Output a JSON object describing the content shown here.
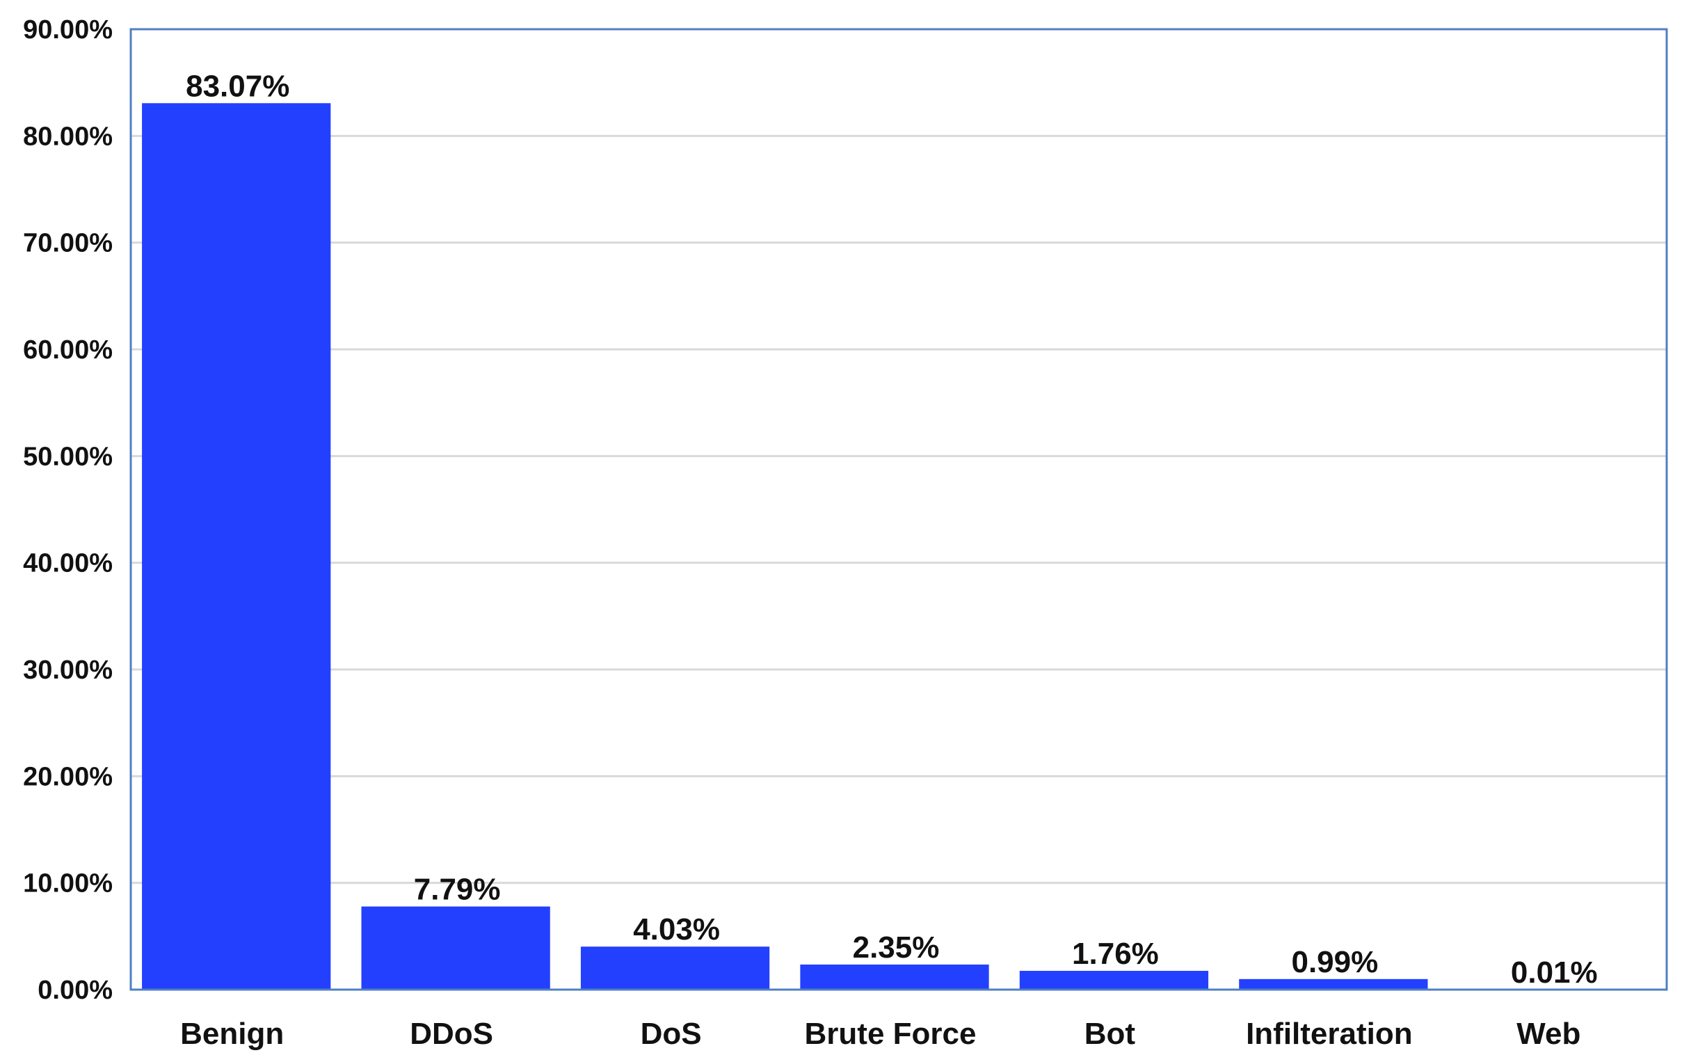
{
  "chart_data": {
    "type": "bar",
    "title": "",
    "xlabel": "",
    "ylabel": "",
    "categories": [
      "Benign",
      "DDoS",
      "DoS",
      "Brute Force",
      "Bot",
      "Infilteration",
      "Web"
    ],
    "values": [
      83.07,
      7.79,
      4.03,
      2.35,
      1.76,
      0.99,
      0.01
    ],
    "value_labels": [
      "83.07%",
      "7.79%",
      "4.03%",
      "2.35%",
      "1.76%",
      "0.99%",
      "0.01%"
    ],
    "ylim": [
      0,
      90
    ],
    "yticks": [
      0,
      10,
      20,
      30,
      40,
      50,
      60,
      70,
      80,
      90
    ],
    "ytick_labels": [
      "0.00%",
      "10.00%",
      "20.00%",
      "30.00%",
      "40.00%",
      "50.00%",
      "60.00%",
      "70.00%",
      "80.00%",
      "90.00%"
    ],
    "grid": true,
    "legend": "none",
    "colors": {
      "bar": "#2340ff",
      "grid": "#d9d9d9",
      "frame": "#4f7fc4"
    }
  }
}
